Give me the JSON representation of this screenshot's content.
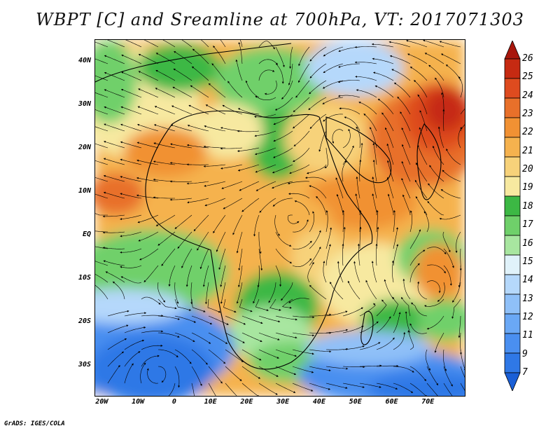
{
  "title": "WBPT [C] and Sreamline at 700hPa, VT: 2017071303",
  "credit": "GrADS: IGES/COLA",
  "map": {
    "variable": "WBPT",
    "units": "C",
    "level": "700hPa",
    "valid_time": "2017071303",
    "lon_range": [
      -22,
      80
    ],
    "lat_range": [
      -37,
      45
    ],
    "lat_ticks": [
      {
        "value": 40,
        "label": "40N"
      },
      {
        "value": 30,
        "label": "30N"
      },
      {
        "value": 20,
        "label": "20N"
      },
      {
        "value": 10,
        "label": "10N"
      },
      {
        "value": 0,
        "label": "EQ"
      },
      {
        "value": -10,
        "label": "10S"
      },
      {
        "value": -20,
        "label": "20S"
      },
      {
        "value": -30,
        "label": "30S"
      }
    ],
    "lon_ticks": [
      {
        "value": -20,
        "label": "20W"
      },
      {
        "value": -10,
        "label": "10W"
      },
      {
        "value": 0,
        "label": "0"
      },
      {
        "value": 10,
        "label": "10E"
      },
      {
        "value": 20,
        "label": "20E"
      },
      {
        "value": 30,
        "label": "30E"
      },
      {
        "value": 40,
        "label": "40E"
      },
      {
        "value": 50,
        "label": "50E"
      },
      {
        "value": 60,
        "label": "60E"
      },
      {
        "value": 70,
        "label": "70E"
      }
    ]
  },
  "colorbar": {
    "levels": [
      "7",
      "9",
      "11",
      "12",
      "13",
      "14",
      "15",
      "16",
      "17",
      "18",
      "19",
      "20",
      "21",
      "22",
      "23",
      "24",
      "25",
      "26"
    ],
    "colors": [
      "#1a5fd6",
      "#2f78e6",
      "#4a8ff0",
      "#6aa8f5",
      "#8fc0f8",
      "#b5d8fb",
      "#e0f2fa",
      "#a8e6a0",
      "#6fd06a",
      "#3cb844",
      "#f7e9a0",
      "#f7d27a",
      "#f5b24e",
      "#f19133",
      "#e8702a",
      "#de4b1f",
      "#c62a12",
      "#a8160c"
    ]
  }
}
